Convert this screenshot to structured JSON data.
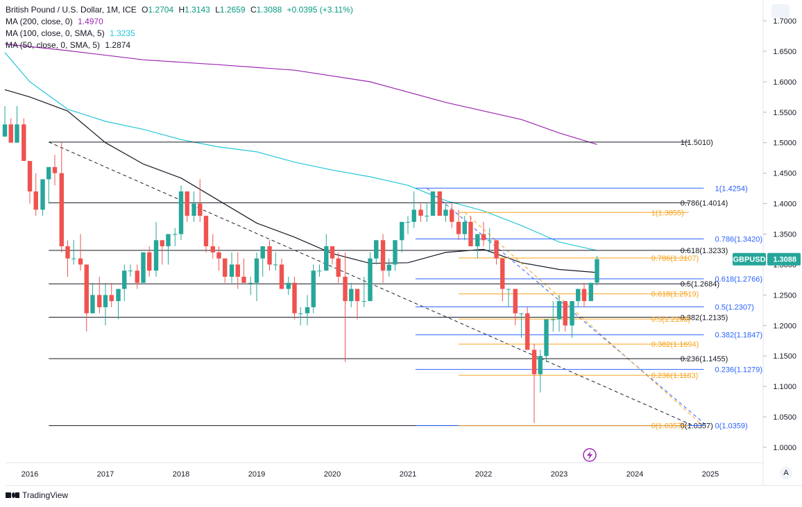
{
  "header": {
    "symbol_title": "British Pound / U.S. Dollar, 1M, ICE",
    "ohlc": [
      {
        "k": "O",
        "v": "1.2704"
      },
      {
        "k": "H",
        "v": "1.3143"
      },
      {
        "k": "L",
        "v": "1.2659"
      },
      {
        "k": "C",
        "v": "1.3088"
      }
    ],
    "change": "+0.0395 (+3.11%)",
    "change_color": "#089981"
  },
  "indicators": [
    {
      "label": "MA (200, close, 0)",
      "value": "1.4970",
      "color": "#9c27b0"
    },
    {
      "label": "MA (100, close, 0, SMA, 5)",
      "value": "1.3235",
      "color": "#26c6da"
    },
    {
      "label": "MA (50, close, 0, SMA, 5)",
      "value": "1.2874",
      "color": "#131722"
    }
  ],
  "price_badge": {
    "symbol": "GBPUSD",
    "value": "1.3088",
    "color": "#26a69a"
  },
  "footer": {
    "brand": "TradingView",
    "auto_scale": "A"
  },
  "chart_data": {
    "type": "candlestick",
    "title": "British Pound / U.S. Dollar, 1M, ICE",
    "y_ticks": [
      1.0,
      1.05,
      1.1,
      1.15,
      1.2,
      1.25,
      1.3,
      1.35,
      1.4,
      1.45,
      1.5,
      1.55,
      1.6,
      1.65,
      1.7
    ],
    "y_tick_labels": [
      "1.0000",
      "1.0500",
      "1.1000",
      "1.1500",
      "1.2000",
      "1.2500",
      "1.3000",
      "1.3500",
      "1.4000",
      "1.4500",
      "1.5000",
      "1.5500",
      "1.6000",
      "1.6500",
      "1.7000"
    ],
    "x_ticks": [
      2016,
      2017,
      2018,
      2019,
      2020,
      2021,
      2022,
      2023,
      2024,
      2025
    ],
    "x_tick_labels": [
      "2016",
      "2017",
      "2018",
      "2019",
      "2020",
      "2021",
      "2022",
      "2023",
      "2024",
      "2025"
    ],
    "candles": [
      {
        "t": 2015.67,
        "o": 1.51,
        "h": 1.56,
        "l": 1.51,
        "c": 1.53
      },
      {
        "t": 2015.75,
        "o": 1.53,
        "h": 1.54,
        "l": 1.5,
        "c": 1.5
      },
      {
        "t": 2015.83,
        "o": 1.5,
        "h": 1.56,
        "l": 1.5,
        "c": 1.53
      },
      {
        "t": 2015.92,
        "o": 1.53,
        "h": 1.54,
        "l": 1.47,
        "c": 1.47
      },
      {
        "t": 2016.0,
        "o": 1.47,
        "h": 1.47,
        "l": 1.4,
        "c": 1.42
      },
      {
        "t": 2016.08,
        "o": 1.42,
        "h": 1.45,
        "l": 1.38,
        "c": 1.39
      },
      {
        "t": 2016.17,
        "o": 1.39,
        "h": 1.44,
        "l": 1.38,
        "c": 1.44
      },
      {
        "t": 2016.25,
        "o": 1.44,
        "h": 1.46,
        "l": 1.4,
        "c": 1.46
      },
      {
        "t": 2016.33,
        "o": 1.46,
        "h": 1.48,
        "l": 1.43,
        "c": 1.45
      },
      {
        "t": 2016.42,
        "o": 1.45,
        "h": 1.5,
        "l": 1.32,
        "c": 1.33
      },
      {
        "t": 2016.5,
        "o": 1.33,
        "h": 1.34,
        "l": 1.28,
        "c": 1.31
      },
      {
        "t": 2016.58,
        "o": 1.31,
        "h": 1.34,
        "l": 1.3,
        "c": 1.31
      },
      {
        "t": 2016.67,
        "o": 1.31,
        "h": 1.35,
        "l": 1.29,
        "c": 1.3
      },
      {
        "t": 2016.75,
        "o": 1.3,
        "h": 1.3,
        "l": 1.19,
        "c": 1.22
      },
      {
        "t": 2016.83,
        "o": 1.22,
        "h": 1.27,
        "l": 1.22,
        "c": 1.25
      },
      {
        "t": 2016.92,
        "o": 1.25,
        "h": 1.28,
        "l": 1.22,
        "c": 1.23
      },
      {
        "t": 2017.0,
        "o": 1.23,
        "h": 1.27,
        "l": 1.2,
        "c": 1.25
      },
      {
        "t": 2017.08,
        "o": 1.25,
        "h": 1.27,
        "l": 1.23,
        "c": 1.24
      },
      {
        "t": 2017.17,
        "o": 1.24,
        "h": 1.26,
        "l": 1.21,
        "c": 1.26
      },
      {
        "t": 2017.25,
        "o": 1.26,
        "h": 1.3,
        "l": 1.24,
        "c": 1.29
      },
      {
        "t": 2017.33,
        "o": 1.29,
        "h": 1.3,
        "l": 1.28,
        "c": 1.29
      },
      {
        "t": 2017.42,
        "o": 1.29,
        "h": 1.3,
        "l": 1.26,
        "c": 1.27
      },
      {
        "t": 2017.5,
        "o": 1.27,
        "h": 1.32,
        "l": 1.27,
        "c": 1.32
      },
      {
        "t": 2017.58,
        "o": 1.32,
        "h": 1.33,
        "l": 1.28,
        "c": 1.29
      },
      {
        "t": 2017.67,
        "o": 1.29,
        "h": 1.37,
        "l": 1.28,
        "c": 1.34
      },
      {
        "t": 2017.75,
        "o": 1.34,
        "h": 1.34,
        "l": 1.3,
        "c": 1.33
      },
      {
        "t": 2017.83,
        "o": 1.33,
        "h": 1.35,
        "l": 1.3,
        "c": 1.35
      },
      {
        "t": 2017.92,
        "o": 1.35,
        "h": 1.36,
        "l": 1.33,
        "c": 1.35
      },
      {
        "t": 2018.0,
        "o": 1.35,
        "h": 1.43,
        "l": 1.34,
        "c": 1.42
      },
      {
        "t": 2018.08,
        "o": 1.42,
        "h": 1.42,
        "l": 1.37,
        "c": 1.38
      },
      {
        "t": 2018.17,
        "o": 1.38,
        "h": 1.42,
        "l": 1.37,
        "c": 1.4
      },
      {
        "t": 2018.25,
        "o": 1.4,
        "h": 1.44,
        "l": 1.37,
        "c": 1.38
      },
      {
        "t": 2018.33,
        "o": 1.38,
        "h": 1.38,
        "l": 1.32,
        "c": 1.33
      },
      {
        "t": 2018.42,
        "o": 1.33,
        "h": 1.35,
        "l": 1.31,
        "c": 1.32
      },
      {
        "t": 2018.5,
        "o": 1.32,
        "h": 1.33,
        "l": 1.29,
        "c": 1.31
      },
      {
        "t": 2018.58,
        "o": 1.31,
        "h": 1.31,
        "l": 1.27,
        "c": 1.28
      },
      {
        "t": 2018.67,
        "o": 1.28,
        "h": 1.32,
        "l": 1.27,
        "c": 1.3
      },
      {
        "t": 2018.75,
        "o": 1.3,
        "h": 1.32,
        "l": 1.26,
        "c": 1.28
      },
      {
        "t": 2018.83,
        "o": 1.28,
        "h": 1.31,
        "l": 1.27,
        "c": 1.27
      },
      {
        "t": 2018.92,
        "o": 1.27,
        "h": 1.28,
        "l": 1.25,
        "c": 1.27
      },
      {
        "t": 2019.0,
        "o": 1.27,
        "h": 1.32,
        "l": 1.24,
        "c": 1.31
      },
      {
        "t": 2019.08,
        "o": 1.31,
        "h": 1.33,
        "l": 1.28,
        "c": 1.33
      },
      {
        "t": 2019.17,
        "o": 1.33,
        "h": 1.34,
        "l": 1.29,
        "c": 1.3
      },
      {
        "t": 2019.25,
        "o": 1.3,
        "h": 1.32,
        "l": 1.29,
        "c": 1.3
      },
      {
        "t": 2019.33,
        "o": 1.3,
        "h": 1.31,
        "l": 1.26,
        "c": 1.26
      },
      {
        "t": 2019.42,
        "o": 1.26,
        "h": 1.28,
        "l": 1.25,
        "c": 1.27
      },
      {
        "t": 2019.5,
        "o": 1.27,
        "h": 1.28,
        "l": 1.21,
        "c": 1.22
      },
      {
        "t": 2019.58,
        "o": 1.22,
        "h": 1.23,
        "l": 1.2,
        "c": 1.22
      },
      {
        "t": 2019.67,
        "o": 1.22,
        "h": 1.25,
        "l": 1.2,
        "c": 1.23
      },
      {
        "t": 2019.75,
        "o": 1.23,
        "h": 1.3,
        "l": 1.22,
        "c": 1.29
      },
      {
        "t": 2019.83,
        "o": 1.29,
        "h": 1.3,
        "l": 1.28,
        "c": 1.29
      },
      {
        "t": 2019.92,
        "o": 1.29,
        "h": 1.35,
        "l": 1.29,
        "c": 1.33
      },
      {
        "t": 2020.0,
        "o": 1.33,
        "h": 1.33,
        "l": 1.3,
        "c": 1.31
      },
      {
        "t": 2020.08,
        "o": 1.31,
        "h": 1.32,
        "l": 1.27,
        "c": 1.28
      },
      {
        "t": 2020.17,
        "o": 1.28,
        "h": 1.32,
        "l": 1.14,
        "c": 1.24
      },
      {
        "t": 2020.25,
        "o": 1.24,
        "h": 1.27,
        "l": 1.23,
        "c": 1.26
      },
      {
        "t": 2020.33,
        "o": 1.26,
        "h": 1.26,
        "l": 1.21,
        "c": 1.24
      },
      {
        "t": 2020.42,
        "o": 1.24,
        "h": 1.28,
        "l": 1.23,
        "c": 1.24
      },
      {
        "t": 2020.5,
        "o": 1.24,
        "h": 1.32,
        "l": 1.24,
        "c": 1.31
      },
      {
        "t": 2020.58,
        "o": 1.31,
        "h": 1.34,
        "l": 1.3,
        "c": 1.34
      },
      {
        "t": 2020.67,
        "o": 1.34,
        "h": 1.35,
        "l": 1.27,
        "c": 1.29
      },
      {
        "t": 2020.75,
        "o": 1.29,
        "h": 1.31,
        "l": 1.28,
        "c": 1.3
      },
      {
        "t": 2020.83,
        "o": 1.3,
        "h": 1.34,
        "l": 1.29,
        "c": 1.34
      },
      {
        "t": 2020.92,
        "o": 1.34,
        "h": 1.37,
        "l": 1.32,
        "c": 1.37
      },
      {
        "t": 2021.0,
        "o": 1.37,
        "h": 1.38,
        "l": 1.35,
        "c": 1.37
      },
      {
        "t": 2021.08,
        "o": 1.37,
        "h": 1.42,
        "l": 1.36,
        "c": 1.39
      },
      {
        "t": 2021.17,
        "o": 1.39,
        "h": 1.4,
        "l": 1.37,
        "c": 1.38
      },
      {
        "t": 2021.25,
        "o": 1.38,
        "h": 1.4,
        "l": 1.37,
        "c": 1.38
      },
      {
        "t": 2021.33,
        "o": 1.38,
        "h": 1.42,
        "l": 1.38,
        "c": 1.42
      },
      {
        "t": 2021.42,
        "o": 1.42,
        "h": 1.42,
        "l": 1.38,
        "c": 1.38
      },
      {
        "t": 2021.5,
        "o": 1.38,
        "h": 1.4,
        "l": 1.37,
        "c": 1.39
      },
      {
        "t": 2021.58,
        "o": 1.39,
        "h": 1.4,
        "l": 1.36,
        "c": 1.37
      },
      {
        "t": 2021.67,
        "o": 1.37,
        "h": 1.39,
        "l": 1.34,
        "c": 1.35
      },
      {
        "t": 2021.75,
        "o": 1.35,
        "h": 1.38,
        "l": 1.34,
        "c": 1.37
      },
      {
        "t": 2021.83,
        "o": 1.37,
        "h": 1.38,
        "l": 1.33,
        "c": 1.33
      },
      {
        "t": 2021.92,
        "o": 1.33,
        "h": 1.35,
        "l": 1.31,
        "c": 1.35
      },
      {
        "t": 2022.0,
        "o": 1.35,
        "h": 1.37,
        "l": 1.33,
        "c": 1.34
      },
      {
        "t": 2022.08,
        "o": 1.34,
        "h": 1.36,
        "l": 1.32,
        "c": 1.34
      },
      {
        "t": 2022.17,
        "o": 1.34,
        "h": 1.34,
        "l": 1.3,
        "c": 1.31
      },
      {
        "t": 2022.25,
        "o": 1.31,
        "h": 1.31,
        "l": 1.24,
        "c": 1.26
      },
      {
        "t": 2022.33,
        "o": 1.26,
        "h": 1.26,
        "l": 1.23,
        "c": 1.26
      },
      {
        "t": 2022.42,
        "o": 1.26,
        "h": 1.26,
        "l": 1.2,
        "c": 1.22
      },
      {
        "t": 2022.5,
        "o": 1.22,
        "h": 1.22,
        "l": 1.18,
        "c": 1.22
      },
      {
        "t": 2022.58,
        "o": 1.22,
        "h": 1.23,
        "l": 1.16,
        "c": 1.16
      },
      {
        "t": 2022.67,
        "o": 1.16,
        "h": 1.17,
        "l": 1.04,
        "c": 1.12
      },
      {
        "t": 2022.75,
        "o": 1.12,
        "h": 1.16,
        "l": 1.09,
        "c": 1.15
      },
      {
        "t": 2022.83,
        "o": 1.15,
        "h": 1.21,
        "l": 1.14,
        "c": 1.21
      },
      {
        "t": 2022.92,
        "o": 1.21,
        "h": 1.24,
        "l": 1.19,
        "c": 1.21
      },
      {
        "t": 2023.0,
        "o": 1.21,
        "h": 1.25,
        "l": 1.19,
        "c": 1.24
      },
      {
        "t": 2023.08,
        "o": 1.24,
        "h": 1.24,
        "l": 1.19,
        "c": 1.2
      },
      {
        "t": 2023.17,
        "o": 1.2,
        "h": 1.24,
        "l": 1.18,
        "c": 1.24
      },
      {
        "t": 2023.25,
        "o": 1.24,
        "h": 1.26,
        "l": 1.23,
        "c": 1.26
      },
      {
        "t": 2023.33,
        "o": 1.26,
        "h": 1.27,
        "l": 1.23,
        "c": 1.24
      },
      {
        "t": 2023.42,
        "o": 1.24,
        "h": 1.27,
        "l": 1.24,
        "c": 1.27
      },
      {
        "t": 2023.5,
        "o": 1.2704,
        "h": 1.3143,
        "l": 1.2659,
        "c": 1.3088
      }
    ],
    "moving_averages": [
      {
        "name": "MA 200",
        "color": "#9c27b0",
        "points": [
          [
            2015.67,
            1.662
          ],
          [
            2016.5,
            1.651
          ],
          [
            2017.5,
            1.636
          ],
          [
            2018.5,
            1.628
          ],
          [
            2019.5,
            1.619
          ],
          [
            2020.5,
            1.6
          ],
          [
            2021.5,
            1.566
          ],
          [
            2022.5,
            1.538
          ],
          [
            2023.0,
            1.516
          ],
          [
            2023.5,
            1.497
          ]
        ]
      },
      {
        "name": "MA 100",
        "color": "#26c6da",
        "points": [
          [
            2015.67,
            1.648
          ],
          [
            2016.0,
            1.6
          ],
          [
            2016.5,
            1.555
          ],
          [
            2017.0,
            1.535
          ],
          [
            2017.5,
            1.522
          ],
          [
            2018.0,
            1.505
          ],
          [
            2018.5,
            1.493
          ],
          [
            2019.0,
            1.485
          ],
          [
            2019.5,
            1.468
          ],
          [
            2020.0,
            1.455
          ],
          [
            2020.5,
            1.444
          ],
          [
            2021.0,
            1.43
          ],
          [
            2021.5,
            1.405
          ],
          [
            2022.0,
            1.388
          ],
          [
            2022.5,
            1.364
          ],
          [
            2023.0,
            1.337
          ],
          [
            2023.5,
            1.323
          ]
        ]
      },
      {
        "name": "MA 50",
        "color": "#131722",
        "points": [
          [
            2015.67,
            1.587
          ],
          [
            2016.0,
            1.575
          ],
          [
            2016.5,
            1.552
          ],
          [
            2017.0,
            1.5
          ],
          [
            2017.5,
            1.465
          ],
          [
            2018.0,
            1.442
          ],
          [
            2018.5,
            1.405
          ],
          [
            2019.0,
            1.368
          ],
          [
            2019.5,
            1.345
          ],
          [
            2020.0,
            1.318
          ],
          [
            2020.5,
            1.302
          ],
          [
            2021.0,
            1.303
          ],
          [
            2021.5,
            1.32
          ],
          [
            2022.0,
            1.325
          ],
          [
            2022.5,
            1.303
          ],
          [
            2023.0,
            1.292
          ],
          [
            2023.5,
            1.287
          ]
        ]
      }
    ],
    "trendlines": [
      {
        "color": "#131722",
        "style": "dashed",
        "from": [
          2016.25,
          1.501
        ],
        "to": [
          2024.75,
          1.037
        ]
      },
      {
        "color": "#2962ff",
        "style": "dashed",
        "from": [
          2021.25,
          1.4254
        ],
        "to": [
          2024.95,
          1.0359
        ]
      },
      {
        "color": "#f7a21b",
        "style": "dashed",
        "from": [
          2021.75,
          1.3855
        ],
        "to": [
          2024.9,
          1.0357
        ]
      }
    ],
    "fib_sets": [
      {
        "name": "fib-black",
        "color": "#131722",
        "x_start": 2016.25,
        "x_end": 2024.75,
        "levels": [
          {
            "ratio": "1",
            "price": 1.501
          },
          {
            "ratio": "0.786",
            "price": 1.4014
          },
          {
            "ratio": "0.618",
            "price": 1.3233
          },
          {
            "ratio": "0.5",
            "price": 1.2684
          },
          {
            "ratio": "0.382",
            "price": 1.2135
          },
          {
            "ratio": "0.236",
            "price": 1.1455
          },
          {
            "ratio": "0",
            "price": 1.0357
          }
        ],
        "labels": [
          "1(1.5010)",
          "0.786(1.4014)",
          "0.618(1.3233)",
          "0.5(1.2684)",
          "0.382(1.2135)",
          "0.236(1.1455)",
          "0(1.0357)"
        ]
      },
      {
        "name": "fib-blue",
        "color": "#2962ff",
        "x_start": 2021.1,
        "x_end": 2024.95,
        "levels": [
          {
            "ratio": "1",
            "price": 1.4254
          },
          {
            "ratio": "0.786",
            "price": 1.342
          },
          {
            "ratio": "0.618",
            "price": 1.2766
          },
          {
            "ratio": "0.5",
            "price": 1.2307
          },
          {
            "ratio": "0.382",
            "price": 1.1847
          },
          {
            "ratio": "0.236",
            "price": 1.1279
          },
          {
            "ratio": "0",
            "price": 1.0359
          }
        ],
        "labels": [
          "1(1.4254)",
          "0.786(1.3420)",
          "0.618(1.2766)",
          "0.5(1.2307)",
          "0.382(1.1847)",
          "0.236(1.1279)",
          "0(1.0359)"
        ]
      },
      {
        "name": "fib-orange",
        "color": "#f7a21b",
        "x_start": 2021.67,
        "x_end": 2024.75,
        "levels": [
          {
            "ratio": "1",
            "price": 1.3855
          },
          {
            "ratio": "0.786",
            "price": 1.3107
          },
          {
            "ratio": "0.618",
            "price": 1.2519
          },
          {
            "ratio": "0.5",
            "price": 1.2106
          },
          {
            "ratio": "0.382",
            "price": 1.1694
          },
          {
            "ratio": "0.236",
            "price": 1.1183
          },
          {
            "ratio": "0",
            "price": 1.0357
          }
        ],
        "labels": [
          "1(1.3855)",
          "0.786(1.3107)",
          "0.618(1.2519)",
          "0.5(1.2106)",
          "0.382(1.1694)",
          "0.236(1.1183)",
          "0(1.0357)"
        ]
      }
    ]
  }
}
